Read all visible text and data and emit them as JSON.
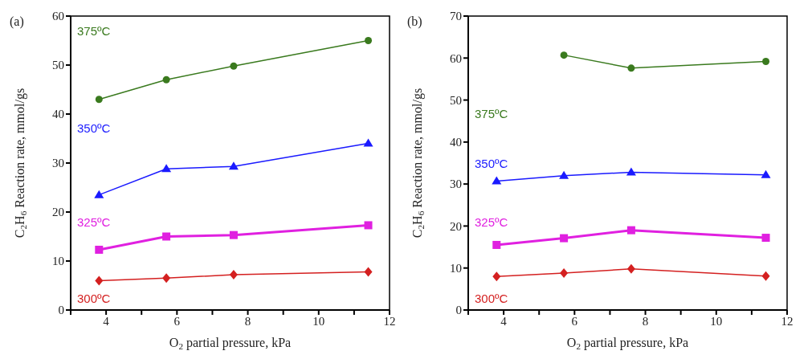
{
  "chart_data": [
    {
      "type": "line",
      "title": "(a)",
      "xlabel": "O$_{2}$ partial pressure, kPa",
      "ylabel": "C$_{2}$H$_{6}$ Reaction rate, mmol/gs",
      "x": [
        3.8,
        5.7,
        7.6,
        11.4
      ],
      "series": [
        {
          "name": "375ºC",
          "color": "#3a7a1e",
          "marker": "circle",
          "values": [
            43,
            47,
            49.8,
            55
          ]
        },
        {
          "name": "350ºC",
          "color": "#1a1aff",
          "marker": "triangle",
          "values": [
            23.5,
            28.8,
            29.3,
            34
          ]
        },
        {
          "name": "325ºC",
          "color": "#e020e0",
          "marker": "square",
          "values": [
            12.3,
            15,
            15.3,
            17.3
          ]
        },
        {
          "name": "300ºC",
          "color": "#d42020",
          "marker": "diamond",
          "values": [
            6,
            6.5,
            7.2,
            7.8
          ]
        }
      ],
      "xlim": [
        3,
        12
      ],
      "xticks": [
        {
          "value": 3,
          "label": null
        },
        4,
        {
          "value": 5,
          "label": null
        },
        6,
        {
          "value": 7,
          "label": null
        },
        8,
        {
          "value": 9,
          "label": null
        },
        10,
        {
          "value": 11,
          "label": null
        },
        12
      ],
      "ylim": [
        0,
        60
      ],
      "yticks": [
        0,
        10,
        20,
        30,
        40,
        50,
        60
      ],
      "grid": false,
      "legend": false,
      "line_style": "solid"
    },
    {
      "type": "line",
      "title": "(b)",
      "xlabel": "O$_{2}$ partial pressure, kPa",
      "ylabel": "C$_{2}$H$_{6}$ Reaction rate, mmol/gs",
      "x": [
        3.8,
        5.7,
        7.6,
        11.4
      ],
      "series": [
        {
          "name": "375ºC",
          "color": "#3a7a1e",
          "marker": "circle",
          "values": [
            null,
            60.7,
            57.6,
            59.2
          ]
        },
        {
          "name": "350ºC",
          "color": "#1a1aff",
          "marker": "triangle",
          "values": [
            30.7,
            32,
            32.8,
            32.2
          ]
        },
        {
          "name": "325ºC",
          "color": "#e020e0",
          "marker": "square",
          "values": [
            15.5,
            17.1,
            19,
            17.2
          ]
        },
        {
          "name": "300ºC",
          "color": "#d42020",
          "marker": "diamond",
          "values": [
            8,
            8.8,
            9.8,
            8.1
          ]
        }
      ],
      "xlim": [
        3,
        12
      ],
      "xticks": [
        {
          "value": 3,
          "label": null
        },
        4,
        {
          "value": 5,
          "label": null
        },
        6,
        {
          "value": 7,
          "label": null
        },
        8,
        {
          "value": 9,
          "label": null
        },
        10,
        {
          "value": 11,
          "label": null
        },
        12
      ],
      "ylim": [
        0,
        70
      ],
      "yticks": [
        0,
        10,
        20,
        30,
        40,
        50,
        60,
        70
      ],
      "grid": false,
      "legend": false,
      "line_style": "solid"
    }
  ]
}
